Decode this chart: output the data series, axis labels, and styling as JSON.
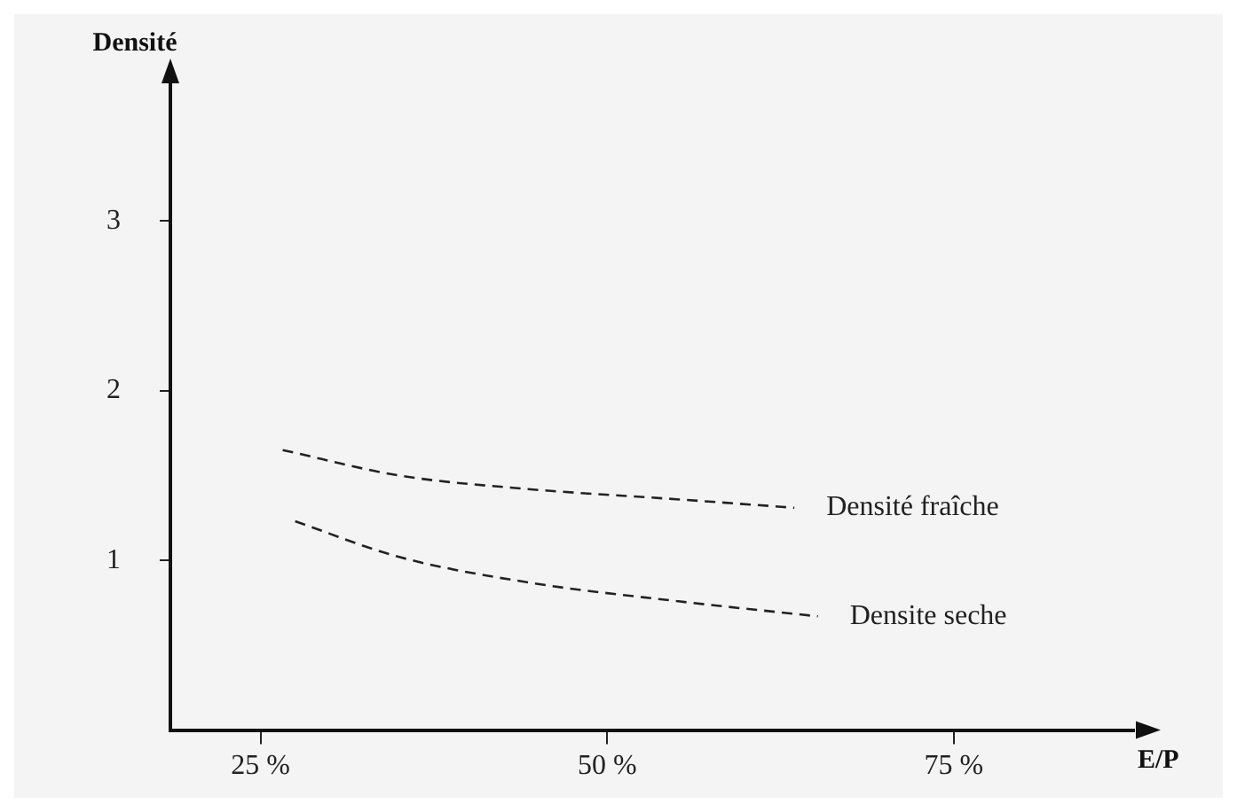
{
  "chart_data": {
    "type": "line",
    "xlabel": "E/P",
    "ylabel": "Densité",
    "xlim": [
      18.5,
      88
    ],
    "ylim": [
      0,
      3.8
    ],
    "xticks": [
      {
        "value": 25,
        "label": "25 %"
      },
      {
        "value": 50,
        "label": "50 %"
      },
      {
        "value": 75,
        "label": "75 %"
      }
    ],
    "yticks": [
      1,
      2,
      3
    ],
    "grid": false,
    "legend": false,
    "marker": "none",
    "line_style": "dashed",
    "series": [
      {
        "name": "Densité fraîche",
        "color": "#222222",
        "x": [
          26.6,
          35,
          44.3,
          55,
          63.5
        ],
        "values": [
          1.65,
          1.5,
          1.42,
          1.36,
          1.31
        ]
      },
      {
        "name": "Densite seche",
        "color": "#222222",
        "x": [
          27.5,
          35,
          44.3,
          55,
          65.2
        ],
        "values": [
          1.23,
          1.02,
          0.87,
          0.76,
          0.67
        ]
      }
    ]
  }
}
